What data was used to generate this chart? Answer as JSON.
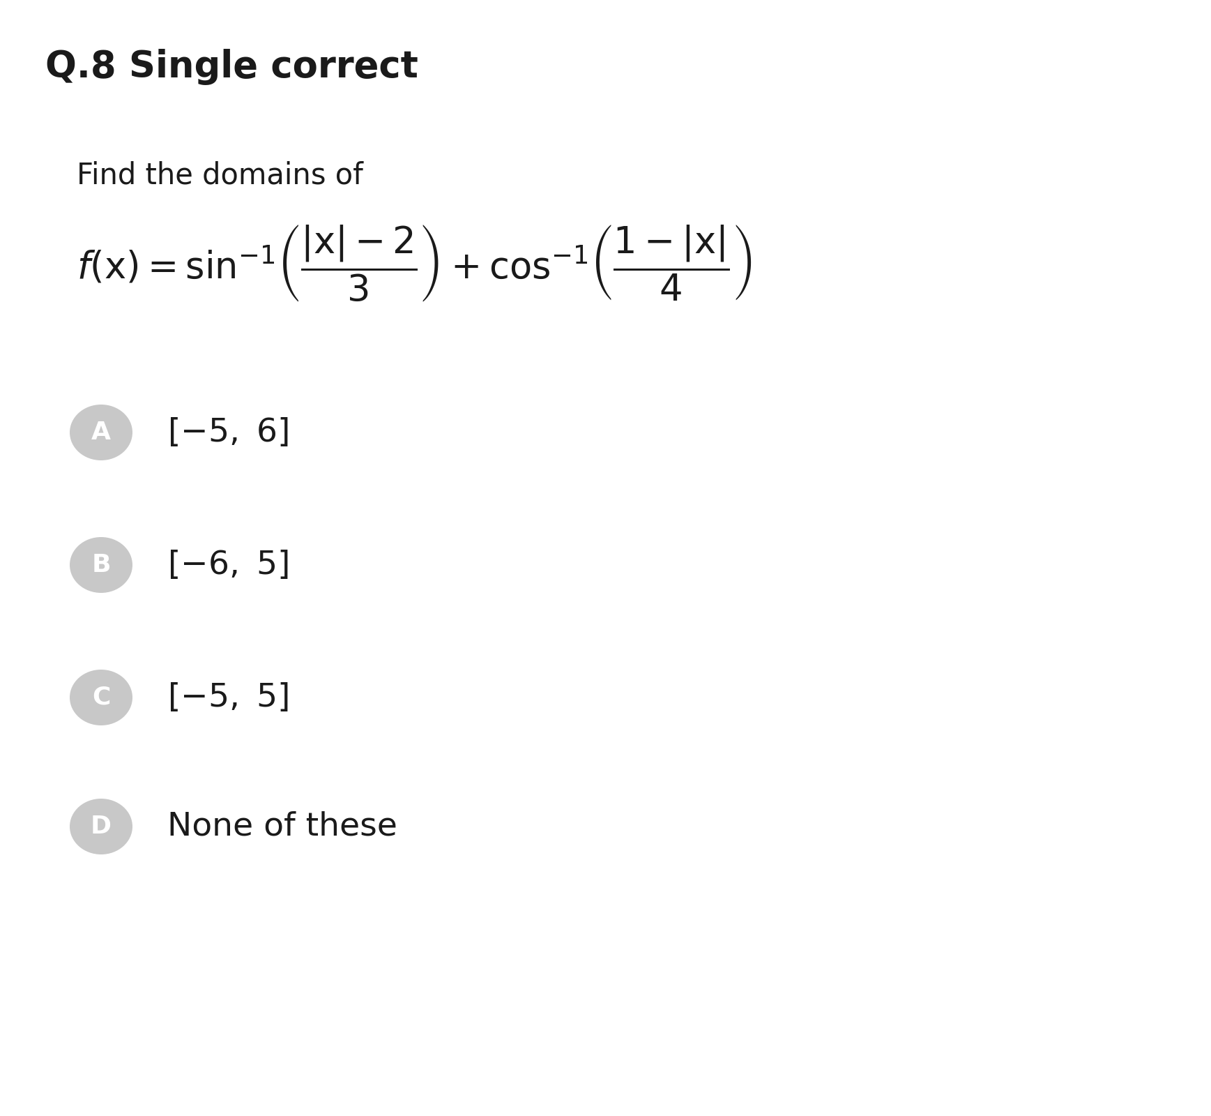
{
  "title": "Q.8 Single correct",
  "question_text": "Find the domains of",
  "options": [
    {
      "label": "A",
      "text": "$[{-5},\\ 6]$"
    },
    {
      "label": "B",
      "text": "$[{-6},\\ 5]$"
    },
    {
      "label": "C",
      "text": "$[{-5},\\ 5]$"
    },
    {
      "label": "D",
      "text": "None of these"
    }
  ],
  "bg_color": "#ffffff",
  "title_color": "#1a1a1a",
  "text_color": "#1a1a1a",
  "option_circle_color": "#c8c8c8",
  "option_label_color": "#ffffff",
  "title_fontsize": 38,
  "question_fontsize": 30,
  "formula_fontsize": 38,
  "option_fontsize": 34,
  "option_label_fontsize": 26
}
